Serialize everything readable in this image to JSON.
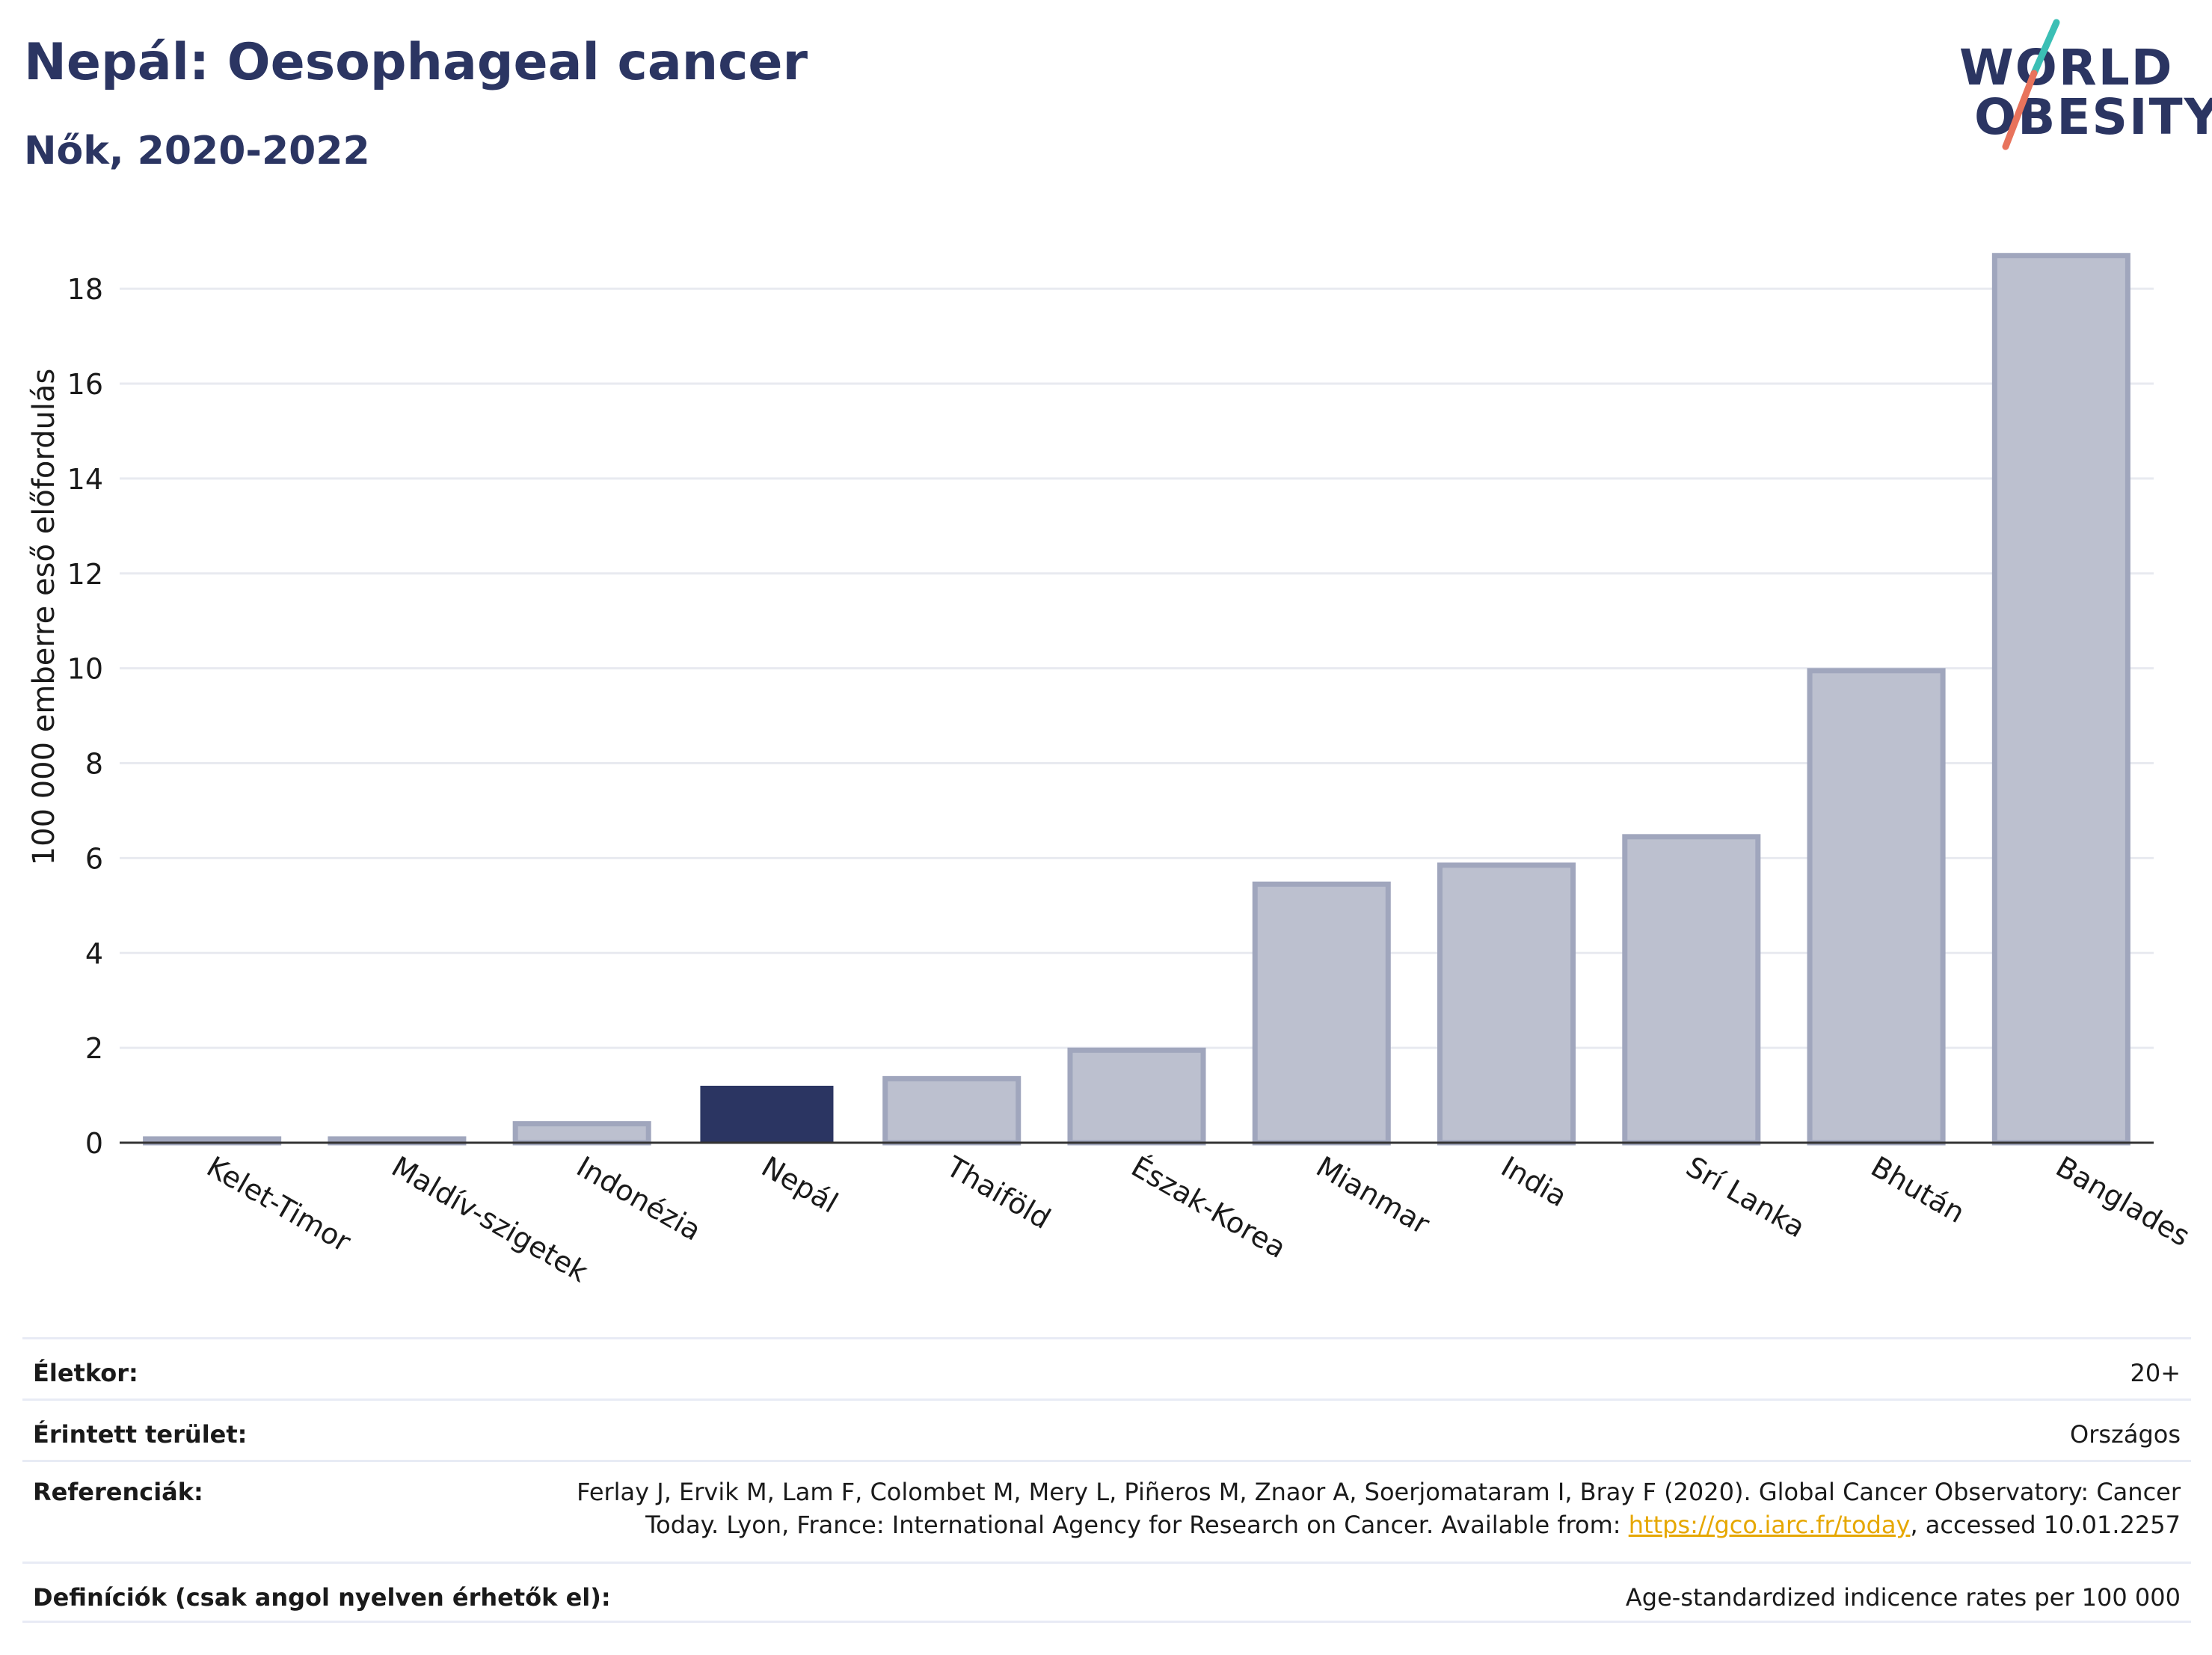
{
  "header": {
    "title": "Nepál: Oesophageal cancer",
    "subtitle": "Nők, 2020-2022"
  },
  "logo": {
    "line1": "WORLD",
    "line2": "OBESITY",
    "colors": {
      "text": "#2b3562",
      "slash_top": "#3bbfb5",
      "slash_bottom": "#e8735c"
    }
  },
  "colors": {
    "highlight_bar": "#2b3562",
    "other_bar": "#bcc0cf",
    "other_bar_border": "#a0a6bd",
    "grid": "#e8eaf0"
  },
  "chart_data": {
    "type": "bar",
    "title": "",
    "xlabel": "",
    "ylabel": "100 000 emberre eső előfordulás",
    "categories": [
      "Kelet-Timor",
      "Maldív-szigetek",
      "Indonézia",
      "Nepál",
      "Thaiföld",
      "Észak-Korea",
      "Mianmar",
      "India",
      "Srí Lanka",
      "Bhután",
      "Banglades"
    ],
    "values": [
      0.08,
      0.08,
      0.4,
      1.2,
      1.35,
      1.95,
      5.45,
      5.85,
      6.45,
      9.95,
      18.7
    ],
    "highlight": "Nepál",
    "ylim": [
      0,
      19.2
    ],
    "yticks": [
      0,
      2,
      4,
      6,
      8,
      10,
      12,
      14,
      16,
      18
    ],
    "grid": true
  },
  "footer": {
    "rows": [
      {
        "label": "Életkor:",
        "value": "20+"
      },
      {
        "label": "Érintett terület:",
        "value": "Országos"
      },
      {
        "label": "Referenciák:",
        "value_pre": "Ferlay J, Ervik M, Lam F, Colombet M, Mery L, Piñeros M, Znaor A, Soerjomataram I, Bray F (2020). Global Cancer Observatory: Cancer Today. Lyon, France: International Agency for Research on Cancer. Available from: ",
        "link": "https://gco.iarc.fr/today",
        "value_post": ", accessed 10.01.2257"
      },
      {
        "label": "Definíciók (csak angol nyelven érhetők el):",
        "value": "Age-standardized indicence rates per 100 000"
      }
    ]
  }
}
